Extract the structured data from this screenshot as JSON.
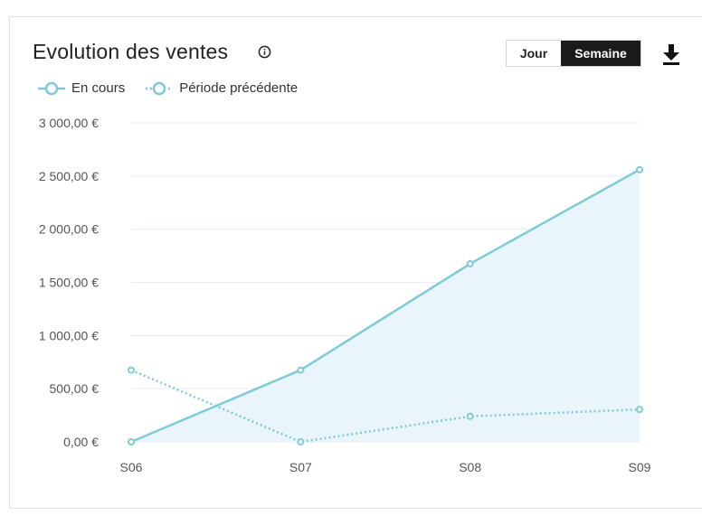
{
  "header": {
    "title": "Evolution des ventes",
    "toggle": {
      "options": [
        "Jour",
        "Semaine"
      ],
      "selected": "Semaine"
    },
    "info_icon": "info-icon",
    "download_icon": "download-icon"
  },
  "colors": {
    "series_line": "#7ecbd6",
    "area_fill": "#e9f5fb",
    "grid": "#e6eef2",
    "toggle_active_bg": "#1a1a1a"
  },
  "chart_data": {
    "type": "line",
    "title": "Evolution des ventes",
    "xlabel": "",
    "ylabel": "",
    "categories": [
      "S06",
      "S07",
      "S08",
      "S09"
    ],
    "series": [
      {
        "name": "En cours",
        "values": [
          0,
          675,
          1675,
          2560
        ],
        "style": "solid",
        "area": true
      },
      {
        "name": "Période précédente",
        "values": [
          675,
          0,
          240,
          305
        ],
        "style": "dotted",
        "area": false
      }
    ],
    "ylim": [
      0,
      3000
    ],
    "y_ticks": [
      {
        "value": 0,
        "label": "0,00 €"
      },
      {
        "value": 500,
        "label": "500,00 €"
      },
      {
        "value": 1000,
        "label": "1 000,00 €"
      },
      {
        "value": 1500,
        "label": "1 500,00 €"
      },
      {
        "value": 2000,
        "label": "2 000,00 €"
      },
      {
        "value": 2500,
        "label": "2 500,00 €"
      },
      {
        "value": 3000,
        "label": "3 000,00 €"
      }
    ],
    "grid": true,
    "legend_placement": "top-left"
  }
}
